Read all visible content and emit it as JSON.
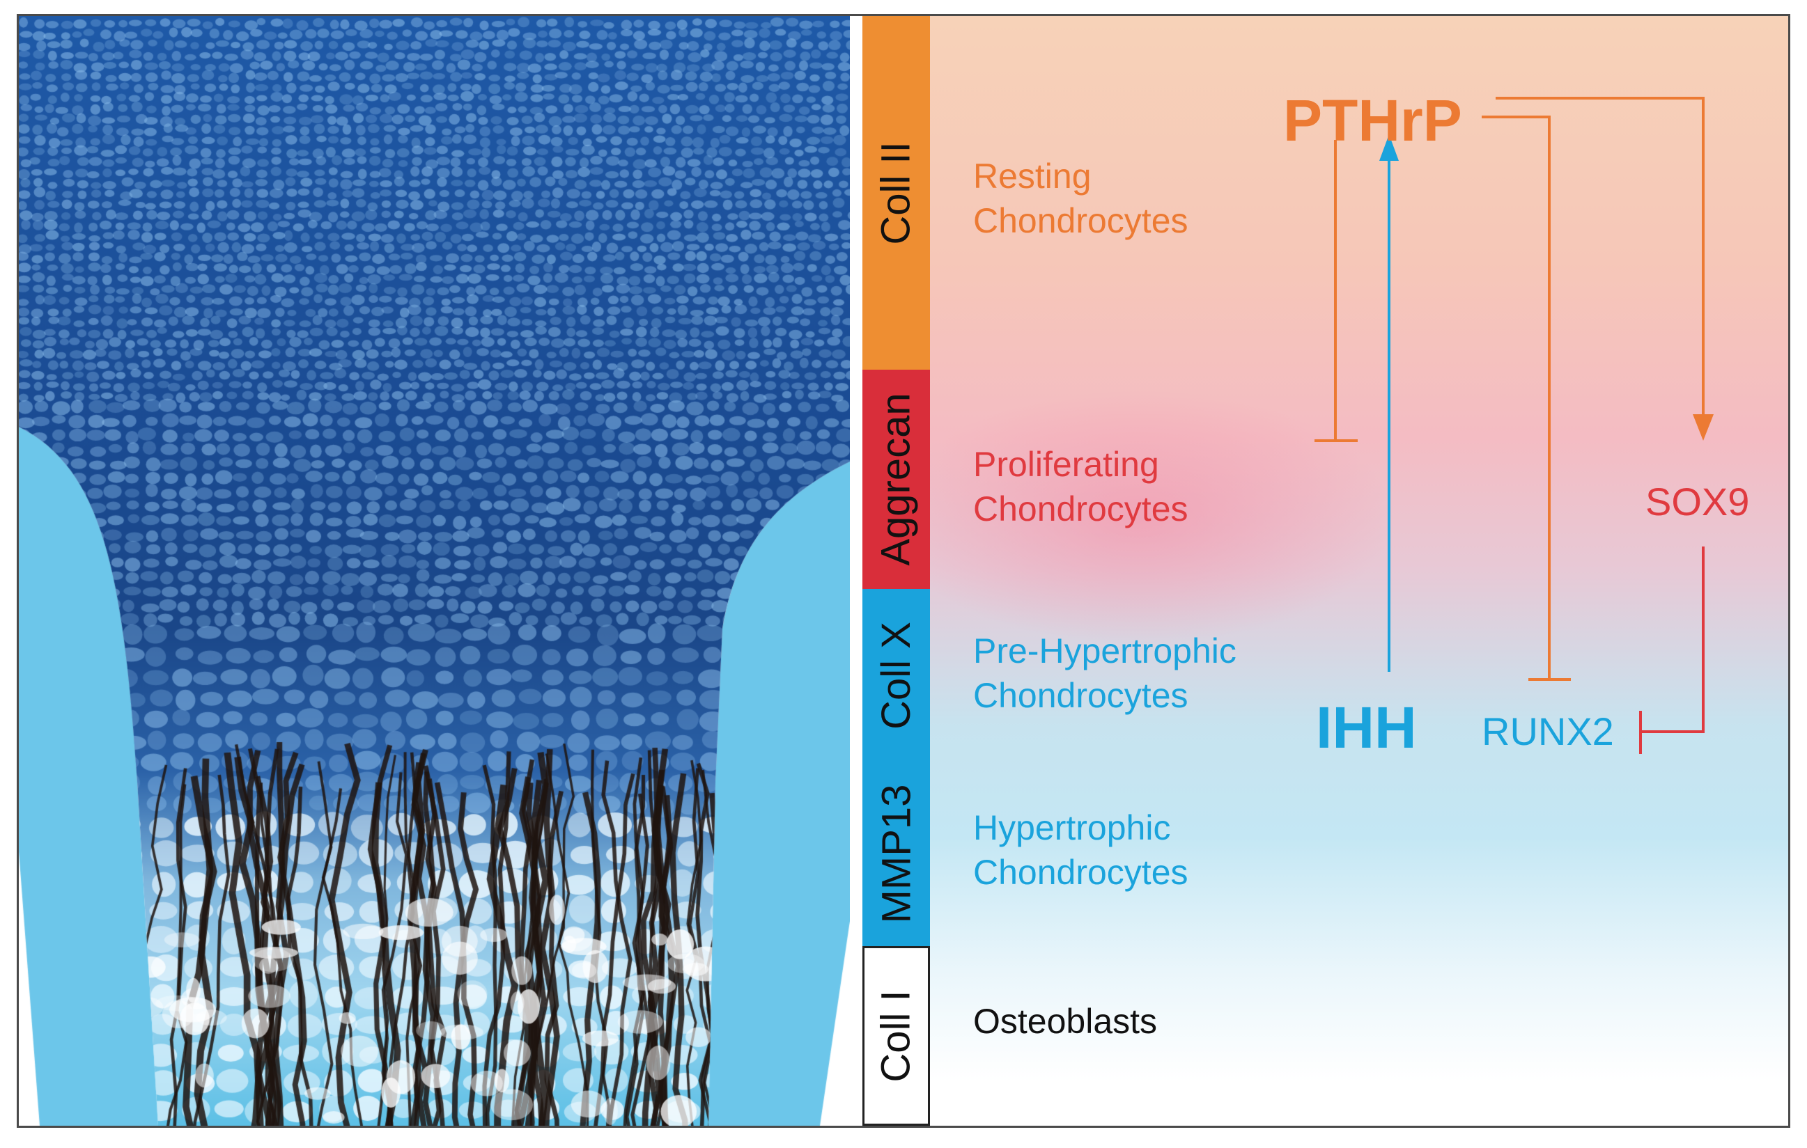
{
  "colors": {
    "orange": "#ec7a33",
    "stripe_orange": "#ee8e32",
    "red": "#e03a3f",
    "blue": "#1aa3dc",
    "black": "#111111",
    "cartilage_dark": "#1e4f9a",
    "bone_light": "#5cc0e6"
  },
  "stripes": [
    {
      "label": "Coll II",
      "color": "#ee8e32"
    },
    {
      "label": "Aggrecan",
      "color": "#d92e3a"
    },
    {
      "label": "Coll X",
      "color": "#1aa3dc"
    },
    {
      "label": "MMP13",
      "color": "#1aa3dc"
    },
    {
      "label": "Coll I",
      "color": "#ffffff"
    }
  ],
  "zones": {
    "resting": {
      "line1": "Resting",
      "line2": "Chondrocytes"
    },
    "proliferating": {
      "line1": "Proliferating",
      "line2": "Chondrocytes"
    },
    "prehypertrophic": {
      "line1": "Pre-Hypertrophic",
      "line2": "Chondrocytes"
    },
    "hypertrophic": {
      "line1": "Hypertrophic",
      "line2": "Chondrocytes"
    },
    "osteoblasts": {
      "line1": "Osteoblasts"
    }
  },
  "genes": {
    "pthrp": "PTHrP",
    "ihh": "IHH",
    "sox9": "SOX9",
    "runx2": "RUNX2"
  }
}
